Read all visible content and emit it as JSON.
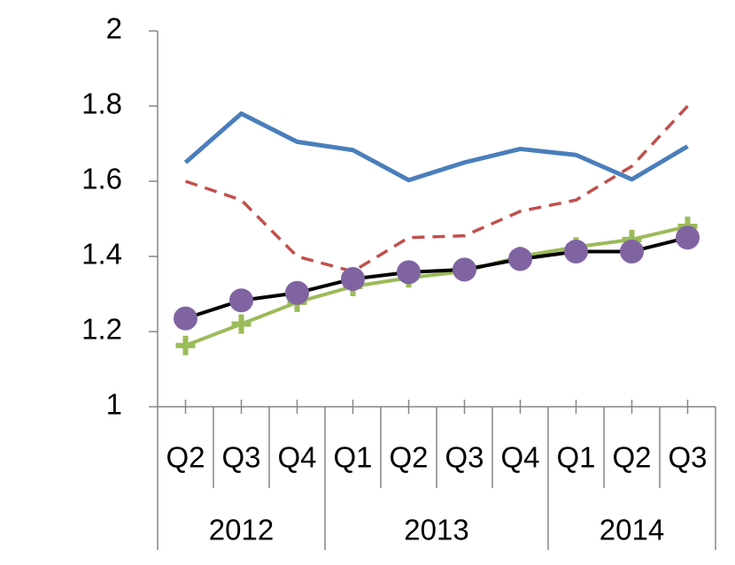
{
  "chart_data": {
    "type": "line",
    "categories": [
      "Q2",
      "Q3",
      "Q4",
      "Q1",
      "Q2",
      "Q3",
      "Q4",
      "Q1",
      "Q2",
      "Q3"
    ],
    "category_years": [
      "2012",
      "2012",
      "2012",
      "2013",
      "2013",
      "2013",
      "2013",
      "2014",
      "2014",
      "2014"
    ],
    "ylim": [
      1,
      2
    ],
    "yticks": [
      1,
      1.2,
      1.4,
      1.6,
      1.8,
      2
    ],
    "series": [
      {
        "color": "#4a7ebb",
        "dash": false,
        "marker": "none",
        "values": [
          1.65,
          1.78,
          1.705,
          1.683,
          1.603,
          1.65,
          1.686,
          1.67,
          1.605,
          1.693
        ]
      },
      {
        "color": "#c0504d",
        "dash": true,
        "marker": "none",
        "values": [
          1.6,
          1.55,
          1.4,
          1.36,
          1.45,
          1.455,
          1.52,
          1.55,
          1.64,
          1.8
        ]
      },
      {
        "color": "#9bbb59",
        "dash": false,
        "marker": "plus",
        "values": [
          1.163,
          1.22,
          1.278,
          1.32,
          1.343,
          1.36,
          1.4,
          1.425,
          1.445,
          1.48
        ]
      },
      {
        "color": "#000000",
        "dash": false,
        "marker": "circle",
        "marker_color": "#8064a2",
        "values": [
          1.235,
          1.283,
          1.303,
          1.34,
          1.358,
          1.365,
          1.393,
          1.413,
          1.413,
          1.45
        ]
      }
    ]
  }
}
